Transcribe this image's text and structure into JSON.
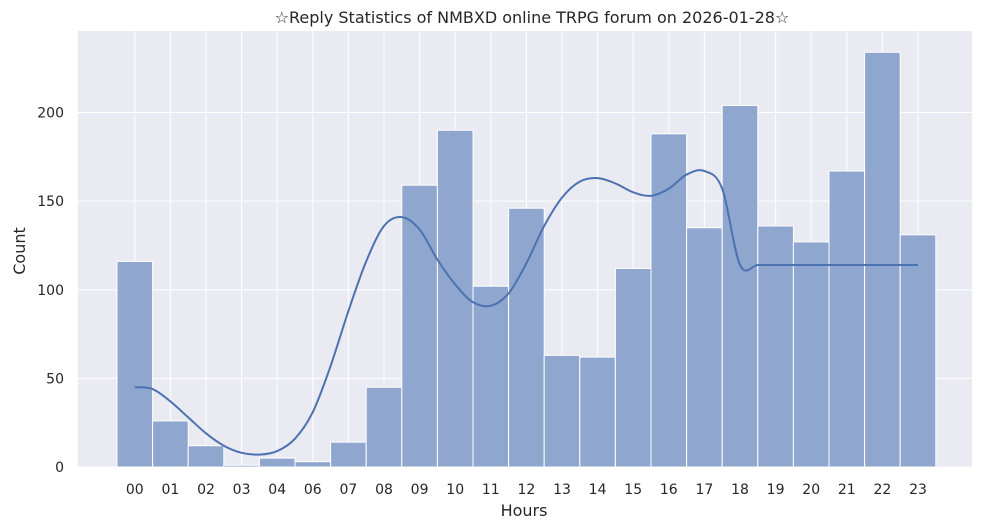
{
  "chart_data": {
    "type": "bar",
    "title": "☆Reply Statistics of NMBXD online TRPG forum on 2026-01-28☆",
    "xlabel": "Hours",
    "ylabel": "Count",
    "categories": [
      "00",
      "01",
      "02",
      "03",
      "04",
      "06",
      "07",
      "08",
      "09",
      "10",
      "11",
      "12",
      "13",
      "14",
      "15",
      "16",
      "17",
      "18",
      "19",
      "20",
      "21",
      "22",
      "23"
    ],
    "values": [
      116,
      26,
      12,
      1,
      5,
      3,
      14,
      45,
      159,
      190,
      102,
      146,
      63,
      62,
      112,
      188,
      135,
      204,
      136,
      127,
      167,
      234,
      131
    ],
    "kde_curve": {
      "x": [
        0,
        0.5,
        1,
        1.5,
        2,
        2.5,
        3,
        3.5,
        4,
        4.5,
        5,
        5.5,
        6,
        6.5,
        7,
        7.5,
        8,
        8.5,
        9,
        9.5,
        10,
        10.5,
        11,
        11.5,
        12,
        12.5,
        13,
        13.5,
        14,
        14.5,
        15,
        15.5,
        16,
        16.5,
        17,
        17.5,
        18,
        18.5,
        19,
        19.5,
        20,
        20.5,
        21,
        21.5,
        22
      ],
      "y": [
        45,
        44,
        37,
        28,
        19,
        12,
        8,
        7,
        9,
        16,
        31,
        57,
        88,
        116,
        136,
        141,
        134,
        117,
        103,
        93,
        91,
        98,
        115,
        136,
        152,
        161,
        163,
        160,
        155,
        153,
        157,
        165,
        167,
        157,
        114,
        114,
        114,
        114,
        114,
        114,
        114,
        114,
        114,
        114,
        114
      ]
    },
    "yticks": [
      0,
      50,
      100,
      150,
      200
    ],
    "ylim": [
      0,
      246
    ],
    "grid": true,
    "colors": {
      "bar": "#8fa6cf",
      "line": "#4c72b0",
      "background": "#eaeaf2",
      "grid": "#ffffff"
    }
  }
}
